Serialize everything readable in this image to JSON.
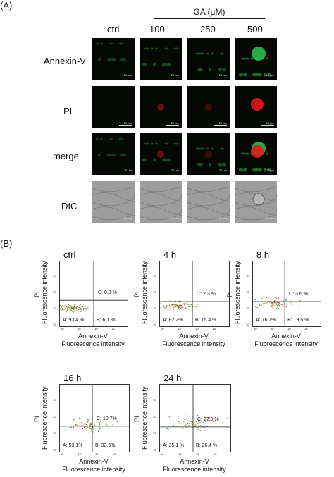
{
  "panel_a": {
    "label": "(A)",
    "group_label": "GA (μM)",
    "columns": [
      "ctrl",
      "100",
      "250",
      "500"
    ],
    "rows": [
      "Annexin-V",
      "PI",
      "merge",
      "DIC"
    ],
    "scale_bar": "20 μm"
  },
  "panel_b": {
    "label": "(B)",
    "xaxis": {
      "line1": "Annexin-V",
      "line2": "Fluorescence intensity"
    },
    "yaxis": {
      "line1": "PI",
      "line2": "Fluorescence intensity"
    },
    "ticks": [
      "10",
      "10",
      "10",
      "10"
    ],
    "plots": [
      {
        "title": "ctrl",
        "A": "A: 93.4 %",
        "B": "B: 6.1 %",
        "C": "C: 0.3 %"
      },
      {
        "title": "4 h",
        "A": "A: 82.2%",
        "B": "B: 15.4 %",
        "C": "C: 2.3 %"
      },
      {
        "title": "8 h",
        "A": "A: 76.7%",
        "B": "B: 19.5 %",
        "C": "C: 3.6 %"
      },
      {
        "title": "16 h",
        "A": "A: 53.1%",
        "B": "B: 33.5%",
        "C": "C: 10.7%"
      },
      {
        "title": "24 h",
        "A": "A: 35.1 %",
        "B": "B: 26.4 %",
        "C": "C: 27.9 %"
      }
    ]
  },
  "colors": {
    "green": "#2fd15a",
    "red": "#e01b1b",
    "dic": "#9a9a9a"
  }
}
